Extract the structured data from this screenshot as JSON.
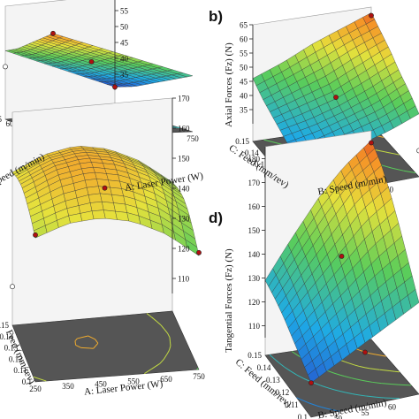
{
  "figure": {
    "panels": [
      {
        "letter": "",
        "zlabel": "",
        "x_axis_label": "A: Laser Power (W)",
        "y_axis_label": "Speed (m/min)"
      },
      {
        "letter": "b)",
        "zlabel": "Axial Forces (Fz) (N)",
        "x_axis_label": "B: Speed (m/min)",
        "y_axis_label": "C: Feed (mm/rev)"
      },
      {
        "letter": "",
        "zlabel": "",
        "x_axis_label": "A: Laser Power (W)",
        "y_axis_label": "Feed (mm/rev)"
      },
      {
        "letter": "d)",
        "zlabel": "Tangential Forces (Fz) (N)",
        "x_axis_label": "B: Speed (m/min)",
        "y_axis_label": "C: Feed (mm/rev)"
      }
    ]
  },
  "chart_data": [
    {
      "type": "surface",
      "title": "",
      "xlabel": "A: Laser Power (W)",
      "ylabel": "Speed (m/min)",
      "zlabel": "",
      "x_ticks": [
        250,
        350,
        450,
        550,
        650,
        750
      ],
      "y_ticks": [
        45,
        50,
        55,
        60,
        65
      ],
      "z_ticks": [
        35,
        40,
        45,
        50,
        55
      ],
      "xlim": [
        250,
        750
      ],
      "ylim": [
        45,
        65
      ],
      "zlim": [
        30,
        60
      ],
      "grid": [
        [
          57,
          54,
          51,
          48,
          45,
          42
        ],
        [
          54,
          51,
          48,
          45,
          42,
          39
        ],
        [
          51,
          48,
          45,
          42,
          39,
          36
        ],
        [
          48,
          45,
          42,
          39,
          36,
          33
        ],
        [
          46,
          43,
          40,
          37,
          34,
          31
        ]
      ],
      "design_points": [
        {
          "x": 250,
          "y": 45,
          "z": 57
        },
        {
          "x": 500,
          "y": 55,
          "z": 44
        },
        {
          "x": 750,
          "y": 65,
          "z": 31
        },
        {
          "x": 250,
          "y": 65,
          "z": 41
        }
      ]
    },
    {
      "type": "surface",
      "title": "",
      "xlabel": "B: Speed (m/min)",
      "ylabel": "C: Feed (mm/rev)",
      "zlabel": "Axial Forces (Fz) (N)",
      "x_ticks": [
        45,
        50,
        55,
        60
      ],
      "y_ticks": [
        0.1,
        0.11,
        0.12,
        0.13,
        0.14,
        0.15
      ],
      "z_ticks": [
        35,
        40,
        45,
        50,
        55,
        60,
        65
      ],
      "xlim": [
        45,
        65
      ],
      "ylim": [
        0.1,
        0.15
      ],
      "zlim": [
        30,
        65
      ],
      "grid": [
        [
          36,
          37,
          39,
          42,
          46
        ],
        [
          37,
          39,
          42,
          45,
          50
        ],
        [
          39,
          41,
          44,
          48,
          53
        ],
        [
          41,
          44,
          47,
          52,
          57
        ],
        [
          43,
          47,
          51,
          56,
          60
        ],
        [
          46,
          50,
          55,
          59,
          63
        ]
      ],
      "design_points": [
        {
          "x": 45,
          "y": 0.1,
          "z": 38
        },
        {
          "x": 55,
          "y": 0.125,
          "z": 46
        },
        {
          "x": 65,
          "y": 0.15,
          "z": 62
        },
        {
          "x": 65,
          "y": 0.1,
          "z": 33
        }
      ]
    },
    {
      "type": "surface",
      "title": "",
      "xlabel": "A: Laser Power (W)",
      "ylabel": "Feed (mm/rev)",
      "zlabel": "",
      "x_ticks": [
        250,
        350,
        450,
        550,
        650,
        750
      ],
      "y_ticks": [
        0.1,
        0.11,
        0.12,
        0.13,
        0.14,
        0.15
      ],
      "z_ticks": [
        110,
        120,
        130,
        140,
        150,
        160,
        170
      ],
      "xlim": [
        250,
        750
      ],
      "ylim": [
        0.1,
        0.15
      ],
      "zlim": [
        105,
        170
      ],
      "grid": [
        [
          147,
          151,
          152,
          150,
          145,
          137
        ],
        [
          150,
          154,
          156,
          154,
          149,
          141
        ],
        [
          152,
          157,
          159,
          157,
          152,
          144
        ],
        [
          153,
          158,
          160,
          158,
          153,
          145
        ],
        [
          152,
          157,
          159,
          157,
          152,
          144
        ],
        [
          150,
          155,
          157,
          155,
          150,
          142
        ]
      ],
      "design_points": [
        {
          "x": 250,
          "y": 0.1,
          "z": 148
        },
        {
          "x": 500,
          "y": 0.125,
          "z": 152
        },
        {
          "x": 750,
          "y": 0.1,
          "z": 138
        },
        {
          "x": 250,
          "y": 0.15,
          "z": 112
        }
      ]
    },
    {
      "type": "surface",
      "title": "",
      "xlabel": "B: Speed (m/min)",
      "ylabel": "C: Feed (mm/rev)",
      "zlabel": "Tangential Forces (Fz) (N)",
      "x_ticks": [
        45,
        50,
        55,
        60
      ],
      "y_ticks": [
        0.1,
        0.11,
        0.12,
        0.13,
        0.14,
        0.15
      ],
      "z_ticks": [
        110,
        120,
        130,
        140,
        150,
        160,
        170,
        180
      ],
      "xlim": [
        45,
        65
      ],
      "ylim": [
        0.1,
        0.15
      ],
      "zlim": [
        105,
        185
      ],
      "grid": [
        [
          112,
          118,
          124,
          130,
          136
        ],
        [
          116,
          124,
          132,
          140,
          147
        ],
        [
          120,
          130,
          140,
          150,
          158
        ],
        [
          124,
          136,
          148,
          160,
          168
        ],
        [
          127,
          141,
          155,
          168,
          176
        ],
        [
          129,
          145,
          160,
          172,
          181
        ]
      ],
      "design_points": [
        {
          "x": 45,
          "y": 0.1,
          "z": 112
        },
        {
          "x": 55,
          "y": 0.125,
          "z": 148
        },
        {
          "x": 65,
          "y": 0.15,
          "z": 180
        },
        {
          "x": 55,
          "y": 0.1,
          "z": 120
        }
      ]
    }
  ]
}
